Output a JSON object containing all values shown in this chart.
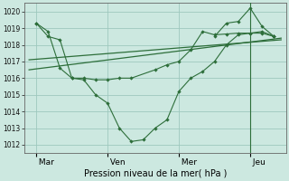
{
  "bg_color": "#cce8e0",
  "grid_color": "#9ec8be",
  "line_color": "#2d6e3a",
  "xlabel": "Pression niveau de la mer( hPa )",
  "ylim": [
    1011.5,
    1020.5
  ],
  "yticks": [
    1012,
    1013,
    1014,
    1015,
    1016,
    1017,
    1018,
    1019,
    1020
  ],
  "xtick_labels": [
    " Mar",
    " Ven",
    " Mer",
    " Jeu"
  ],
  "xtick_positions": [
    0,
    3,
    6,
    9
  ],
  "xlim": [
    -0.5,
    10.5
  ],
  "vline_x": 9,
  "figsize": [
    3.2,
    2.0
  ],
  "dpi": 100,
  "jagged_x": [
    0,
    0.5,
    1,
    1.5,
    2,
    2.5,
    3,
    3.5,
    4,
    4.5,
    5,
    5.5,
    6,
    6.5,
    7,
    7.5,
    8,
    8.5,
    9,
    9.5,
    10
  ],
  "jagged_y": [
    1019.3,
    1018.5,
    1018.3,
    1016.0,
    1015.9,
    1015.0,
    1014.5,
    1013.0,
    1012.2,
    1012.3,
    1013.0,
    1013.5,
    1015.2,
    1016.0,
    1016.4,
    1017.0,
    1018.0,
    1018.6,
    1018.7,
    1018.7,
    1018.5
  ],
  "smooth_x": [
    0,
    0.5,
    1,
    1.5,
    2,
    2.5,
    3,
    3.5,
    4,
    5,
    5.5,
    6,
    6.5,
    7,
    7.5,
    8,
    8.5,
    9,
    9.5,
    10
  ],
  "smooth_y": [
    1019.3,
    1018.8,
    1016.6,
    1016.0,
    1016.0,
    1015.9,
    1015.9,
    1016.0,
    1016.0,
    1016.5,
    1016.8,
    1017.0,
    1017.7,
    1018.8,
    1018.6,
    1018.65,
    1018.7,
    1018.7,
    1018.8,
    1018.5
  ],
  "peak_x": [
    7.5,
    8,
    8.5,
    9,
    9.5,
    10
  ],
  "peak_y": [
    1018.5,
    1019.3,
    1019.4,
    1020.2,
    1019.1,
    1018.5
  ],
  "trend1_x": [
    -0.3,
    10.3
  ],
  "trend1_y": [
    1016.5,
    1018.4
  ],
  "trend2_x": [
    -0.3,
    10.3
  ],
  "trend2_y": [
    1017.1,
    1018.3
  ]
}
